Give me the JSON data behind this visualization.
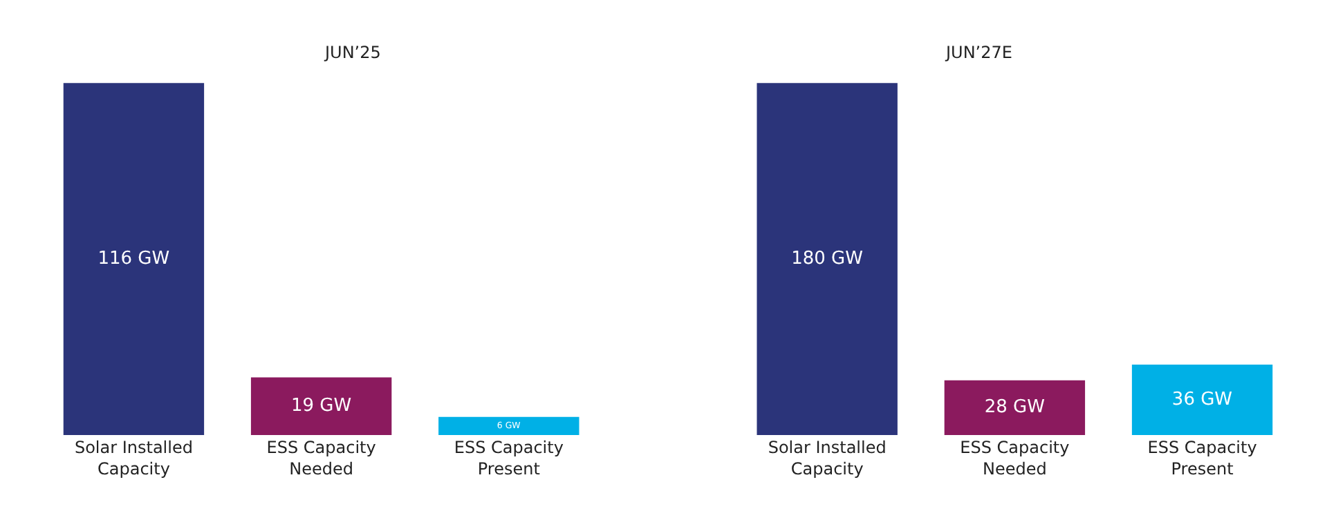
{
  "chart_data": [
    {
      "type": "bar",
      "title": "JUN’25",
      "categories": [
        "Solar Installed Capacity",
        "ESS Capacity Needed",
        "ESS Capacity Present"
      ],
      "values": [
        116,
        19,
        6
      ],
      "colors": [
        "#2b347a",
        "#8b1a5e",
        "#00b0e6"
      ],
      "value_labels": [
        "116 GW",
        "19 GW",
        "6 GW"
      ]
    },
    {
      "type": "bar",
      "title": "JUN’27E",
      "categories": [
        "Solar Installed Capacity",
        "ESS Capacity Needed",
        "ESS Capacity Present"
      ],
      "values": [
        180,
        28,
        36
      ],
      "colors": [
        "#2b347a",
        "#8b1a5e",
        "#00b0e6"
      ],
      "value_labels": [
        "180 GW",
        "28 GW",
        "36 GW"
      ]
    }
  ]
}
